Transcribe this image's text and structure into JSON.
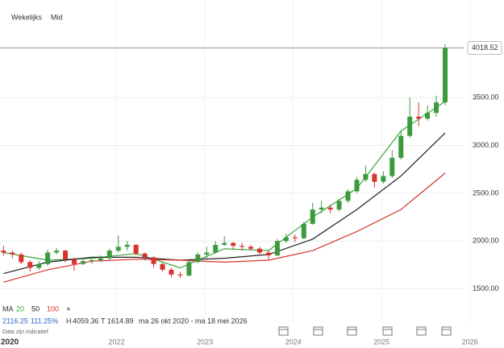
{
  "header": {
    "interval": "Wekelijks",
    "price_type": "Mid"
  },
  "chart_data": {
    "type": "candlestick",
    "x": [
      2020.72,
      2020.82,
      2020.92,
      2021.02,
      2021.12,
      2021.22,
      2021.32,
      2021.42,
      2021.52,
      2021.62,
      2021.72,
      2021.82,
      2021.92,
      2022.02,
      2022.12,
      2022.22,
      2022.32,
      2022.42,
      2022.52,
      2022.62,
      2022.72,
      2022.82,
      2022.92,
      2023.02,
      2023.12,
      2023.22,
      2023.32,
      2023.42,
      2023.52,
      2023.62,
      2023.72,
      2023.82,
      2023.92,
      2024.02,
      2024.12,
      2024.22,
      2024.32,
      2024.42,
      2024.52,
      2024.62,
      2024.72,
      2024.82,
      2024.92,
      2025.02,
      2025.12,
      2025.22,
      2025.32,
      2025.42,
      2025.52,
      2025.62,
      2025.72
    ],
    "open": [
      1900,
      1880,
      1860,
      1780,
      1720,
      1760,
      1880,
      1900,
      1810,
      1760,
      1790,
      1800,
      1820,
      1900,
      1940,
      1960,
      1870,
      1830,
      1760,
      1700,
      1650,
      1640,
      1780,
      1860,
      1880,
      1960,
      1980,
      1950,
      1940,
      1920,
      1880,
      1850,
      2000,
      2040,
      2030,
      2180,
      2330,
      2350,
      2330,
      2420,
      2520,
      2640,
      2700,
      2620,
      2680,
      2870,
      3100,
      3300,
      3280,
      3340,
      3450
    ],
    "high": [
      1950,
      1900,
      1880,
      1800,
      1790,
      1910,
      1930,
      1910,
      1830,
      1820,
      1830,
      1850,
      1920,
      2060,
      2000,
      1970,
      1880,
      1840,
      1770,
      1720,
      1680,
      1800,
      1880,
      1940,
      2000,
      2050,
      1990,
      1980,
      1960,
      1940,
      1900,
      2020,
      2080,
      2070,
      2200,
      2400,
      2420,
      2380,
      2440,
      2540,
      2670,
      2790,
      2720,
      2730,
      2950,
      3150,
      3500,
      3450,
      3420,
      3520,
      4059.36
    ],
    "low": [
      1850,
      1820,
      1760,
      1680,
      1700,
      1740,
      1860,
      1780,
      1690,
      1750,
      1760,
      1780,
      1800,
      1880,
      1900,
      1850,
      1800,
      1720,
      1680,
      1620,
      1615,
      1630,
      1770,
      1820,
      1870,
      1950,
      1910,
      1900,
      1900,
      1860,
      1810,
      1840,
      1980,
      1990,
      2020,
      2170,
      2290,
      2290,
      2310,
      2400,
      2500,
      2620,
      2560,
      2600,
      2660,
      2850,
      3080,
      3200,
      3260,
      3300,
      3420
    ],
    "close": [
      1880,
      1860,
      1780,
      1720,
      1760,
      1880,
      1900,
      1810,
      1760,
      1790,
      1800,
      1820,
      1900,
      1940,
      1960,
      1870,
      1830,
      1760,
      1700,
      1650,
      1640,
      1780,
      1860,
      1880,
      1960,
      1980,
      1950,
      1940,
      1920,
      1880,
      1850,
      2000,
      2040,
      2030,
      2180,
      2330,
      2350,
      2330,
      2420,
      2520,
      2640,
      2700,
      2620,
      2680,
      2870,
      3100,
      3300,
      3280,
      3340,
      3450,
      4018.52
    ],
    "up_color": "#3c9a3c",
    "down_color": "#d8332c",
    "xlim": [
      2020.68,
      2025.93
    ],
    "xticks": [
      2022,
      2023,
      2024,
      2025,
      2026
    ],
    "x_start_label": "2020",
    "ylim": [
      1000,
      4520
    ],
    "yticks": [
      {
        "value": 1500,
        "label": "1500.00"
      },
      {
        "value": 2000,
        "label": "2000.00"
      },
      {
        "value": 2500,
        "label": "2500.00"
      },
      {
        "value": 3000,
        "label": "3000.00"
      },
      {
        "value": 3500,
        "label": "3500.00"
      }
    ],
    "last_price": 4018.52,
    "ma_label": "MA",
    "moving_averages": [
      {
        "name": "20",
        "color": "#3aa63a",
        "x": [
          2020.72,
          2021.22,
          2021.72,
          2022.22,
          2022.72,
          2023.22,
          2023.72,
          2024.22,
          2024.72,
          2025.22,
          2025.72
        ],
        "values": [
          1880,
          1800,
          1820,
          1870,
          1720,
          1920,
          1900,
          2250,
          2550,
          3150,
          3460
        ]
      },
      {
        "name": "50",
        "color": "#222222",
        "x": [
          2020.72,
          2021.22,
          2021.72,
          2022.22,
          2022.72,
          2023.22,
          2023.72,
          2024.22,
          2024.72,
          2025.22,
          2025.72
        ],
        "values": [
          1660,
          1780,
          1830,
          1830,
          1800,
          1820,
          1860,
          2020,
          2330,
          2680,
          3130
        ]
      },
      {
        "name": "100",
        "color": "#d8332c",
        "x": [
          2020.72,
          2021.22,
          2021.72,
          2022.22,
          2022.72,
          2023.22,
          2023.72,
          2024.22,
          2024.72,
          2025.22,
          2025.72
        ],
        "values": [
          1570,
          1700,
          1790,
          1810,
          1800,
          1780,
          1800,
          1900,
          2100,
          2330,
          2710
        ]
      }
    ]
  },
  "footer": {
    "close_icon": "×",
    "change": 2116.25,
    "change_pct": "111.25%",
    "high_label": "H",
    "high": 4059.36,
    "low_label": "T",
    "low": 1614.89,
    "range": "ma 26 okt 2020 - ma 18 mei 2026",
    "note": "Data zijn indicatief"
  }
}
